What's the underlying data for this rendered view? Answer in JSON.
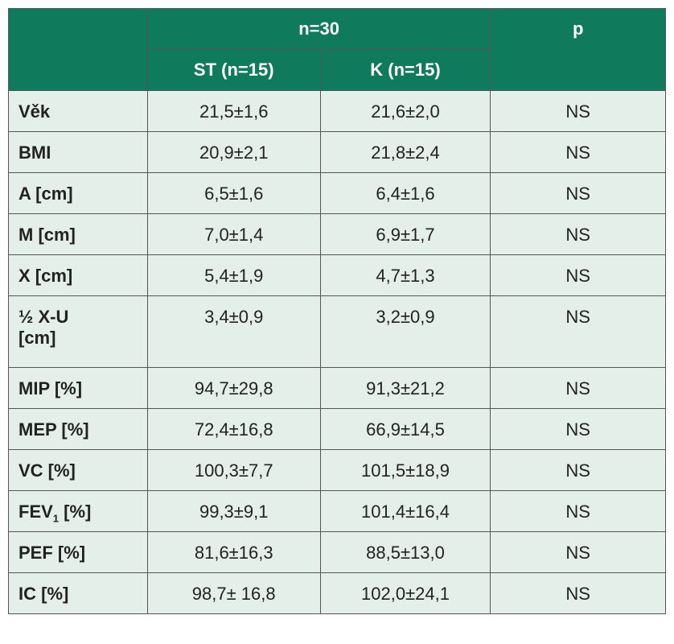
{
  "table": {
    "header": {
      "group": "n=30",
      "p": "p",
      "sub": [
        "ST (n=15)",
        "K (n=15)"
      ]
    },
    "rows": [
      [
        "Věk",
        "21,5±1,6",
        "21,6±2,0",
        "NS"
      ],
      [
        "BMI",
        "20,9±2,1",
        "21,8±2,4",
        "NS"
      ],
      [
        "A [cm]",
        "6,5±1,6",
        "6,4±1,6",
        "NS"
      ],
      [
        "M [cm]",
        "7,0±1,4",
        "6,9±1,7",
        "NS"
      ],
      [
        "X [cm]",
        "5,4±1,9",
        "4,7±1,3",
        "NS"
      ],
      [
        "½ X-U [cm]",
        "3,4±0,9",
        "3,2±0,9",
        "NS"
      ],
      [
        "MIP [%]",
        "94,7±29,8",
        "91,3±21,2",
        "NS"
      ],
      [
        "MEP [%]",
        "72,4±16,8",
        "66,9±14,5",
        "NS"
      ],
      [
        "VC [%]",
        "100,3±7,7",
        "101,5±18,9",
        "NS"
      ],
      [
        {
          "main": "FEV",
          "sub": "1",
          "rest": " [%]"
        },
        "99,3±9,1",
        "101,4±16,4",
        "NS"
      ],
      [
        "PEF [%]",
        "81,6±16,3",
        "88,5±13,0",
        "NS"
      ],
      [
        "IC [%]",
        "98,7± 16,8",
        "102,0±24,1",
        "NS"
      ]
    ]
  }
}
